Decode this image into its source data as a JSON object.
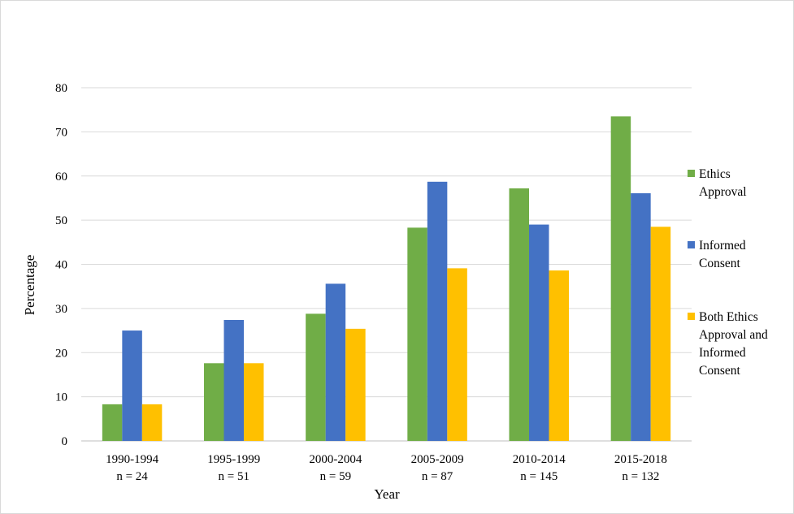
{
  "chart_data": {
    "type": "bar",
    "title": "",
    "xlabel": "Year",
    "ylabel": "Percentage",
    "ylim": [
      0,
      80
    ],
    "yticks": [
      0,
      10,
      20,
      30,
      40,
      50,
      60,
      70,
      80
    ],
    "grid": "horizontal",
    "legend_position": "right",
    "categories": [
      "1990-1994",
      "1995-1999",
      "2000-2004",
      "2005-2009",
      "2010-2014",
      "2015-2018"
    ],
    "sample_sizes": [
      "n = 24",
      "n = 51",
      "n = 59",
      "n = 87",
      "n = 145",
      "n = 132"
    ],
    "series": [
      {
        "name": "Ethics Approval",
        "legend_lines": [
          "Ethics",
          "Approval"
        ],
        "color": "#70ad47",
        "values": [
          8.3,
          17.6,
          28.8,
          48.3,
          57.2,
          73.5
        ]
      },
      {
        "name": "Informed Consent",
        "legend_lines": [
          "Informed",
          "Consent"
        ],
        "color": "#4472c4",
        "values": [
          25.0,
          27.4,
          35.6,
          58.7,
          49.0,
          56.1
        ]
      },
      {
        "name": "Both Ethics Approval and Informed Consent",
        "legend_lines": [
          "Both Ethics",
          "Approval and",
          "Informed",
          "Consent"
        ],
        "color": "#ffc000",
        "values": [
          8.3,
          17.6,
          25.4,
          39.1,
          38.6,
          48.5
        ]
      }
    ]
  }
}
